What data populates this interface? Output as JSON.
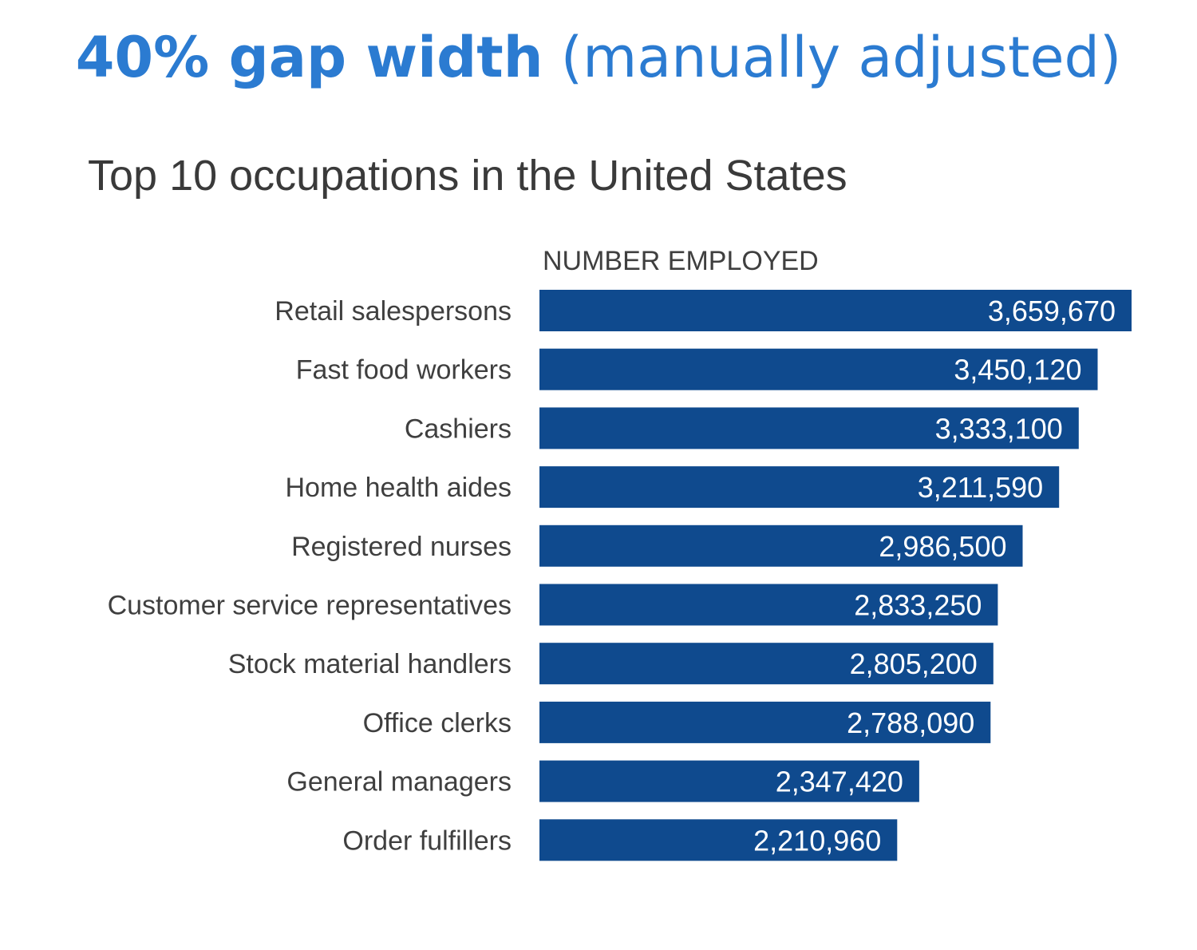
{
  "headline": {
    "bold_text": "40% gap width",
    "light_text": "(manually adjusted)"
  },
  "colors": {
    "headline": "#2b7bd1",
    "bar": "#0f4a8e",
    "title": "#3a3a3a",
    "label": "#3f3f3f",
    "value_label": "#ffffff"
  },
  "chart_data": {
    "type": "bar",
    "orientation": "horizontal",
    "title": "Top 10 occupations in the United States",
    "axis_header": "NUMBER EMPLOYED",
    "gap_width": "40%",
    "categories": [
      "Retail salespersons",
      "Fast food workers",
      "Cashiers",
      "Home health aides",
      "Registered nurses",
      "Customer service representatives",
      "Stock material handlers",
      "Office clerks",
      "General managers",
      "Order fulfillers"
    ],
    "values": [
      3659670,
      3450120,
      3333100,
      3211590,
      2986500,
      2833250,
      2805200,
      2788090,
      2347420,
      2210960
    ],
    "value_labels": [
      "3,659,670",
      "3,450,120",
      "3,333,100",
      "3,211,590",
      "2,986,500",
      "2,833,250",
      "2,805,200",
      "2,788,090",
      "2,347,420",
      "2,210,960"
    ],
    "xlim": [
      0,
      3659670
    ],
    "grid": false,
    "legend": "none"
  }
}
